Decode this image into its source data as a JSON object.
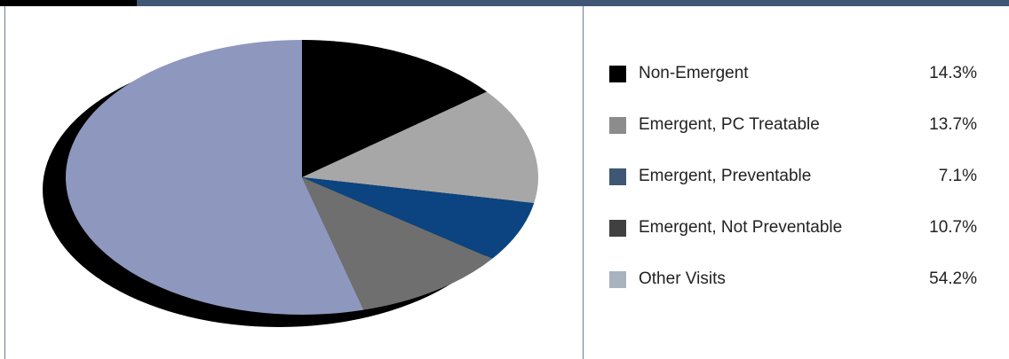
{
  "chart_data": {
    "type": "pie",
    "title": "",
    "legend_position": "right",
    "slices": [
      {
        "label": "Non-Emergent",
        "value": 14.3,
        "display": "14.3%",
        "color": "#000000",
        "swatch_color": "#000000"
      },
      {
        "label": "Emergent, PC Treatable",
        "value": 13.7,
        "display": "13.7%",
        "color": "#a7a7a7",
        "swatch_color": "#8c8c8c"
      },
      {
        "label": "Emergent, Preventable",
        "value": 7.1,
        "display": "7.1%",
        "color": "#0b4480",
        "swatch_color": "#3f5775"
      },
      {
        "label": "Emergent, Not Preventable",
        "value": 10.7,
        "display": "10.7%",
        "color": "#6f6f6f",
        "swatch_color": "#404040"
      },
      {
        "label": "Other Visits",
        "value": 54.2,
        "display": "54.2%",
        "color": "#8e97bd",
        "swatch_color": "#a9b2bf"
      }
    ]
  }
}
